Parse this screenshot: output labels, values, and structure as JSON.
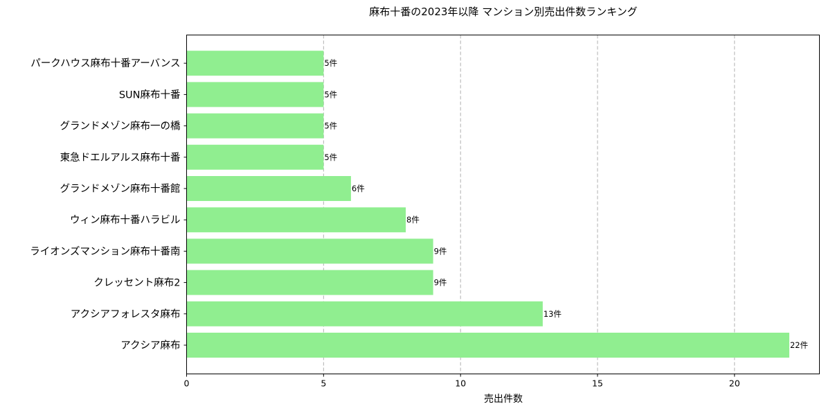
{
  "chart_data": {
    "type": "bar",
    "orientation": "horizontal",
    "title": "麻布十番の2023年以降 マンション別売出件数ランキング",
    "xlabel": "売出件数",
    "ylabel": "",
    "xlim": [
      0,
      23.1
    ],
    "xticks": [
      0,
      5,
      10,
      15,
      20
    ],
    "grid": "x-dashed",
    "value_suffix": "件",
    "bar_color": "#90ee90",
    "categories": [
      "アクシア麻布",
      "アクシアフォレスタ麻布",
      "クレッセント麻布2",
      "ライオンズマンション麻布十番南",
      "ウィン麻布十番ハラビル",
      "グランドメゾン麻布十番館",
      "東急ドエルアルス麻布十番",
      "グランドメゾン麻布一の橋",
      "SUN麻布十番",
      "パークハウス麻布十番アーバンス"
    ],
    "values": [
      22,
      13,
      9,
      9,
      8,
      6,
      5,
      5,
      5,
      5
    ],
    "data_labels": [
      "22件",
      "13件",
      "9件",
      "9件",
      "8件",
      "6件",
      "5件",
      "5件",
      "5件",
      "5件"
    ]
  }
}
